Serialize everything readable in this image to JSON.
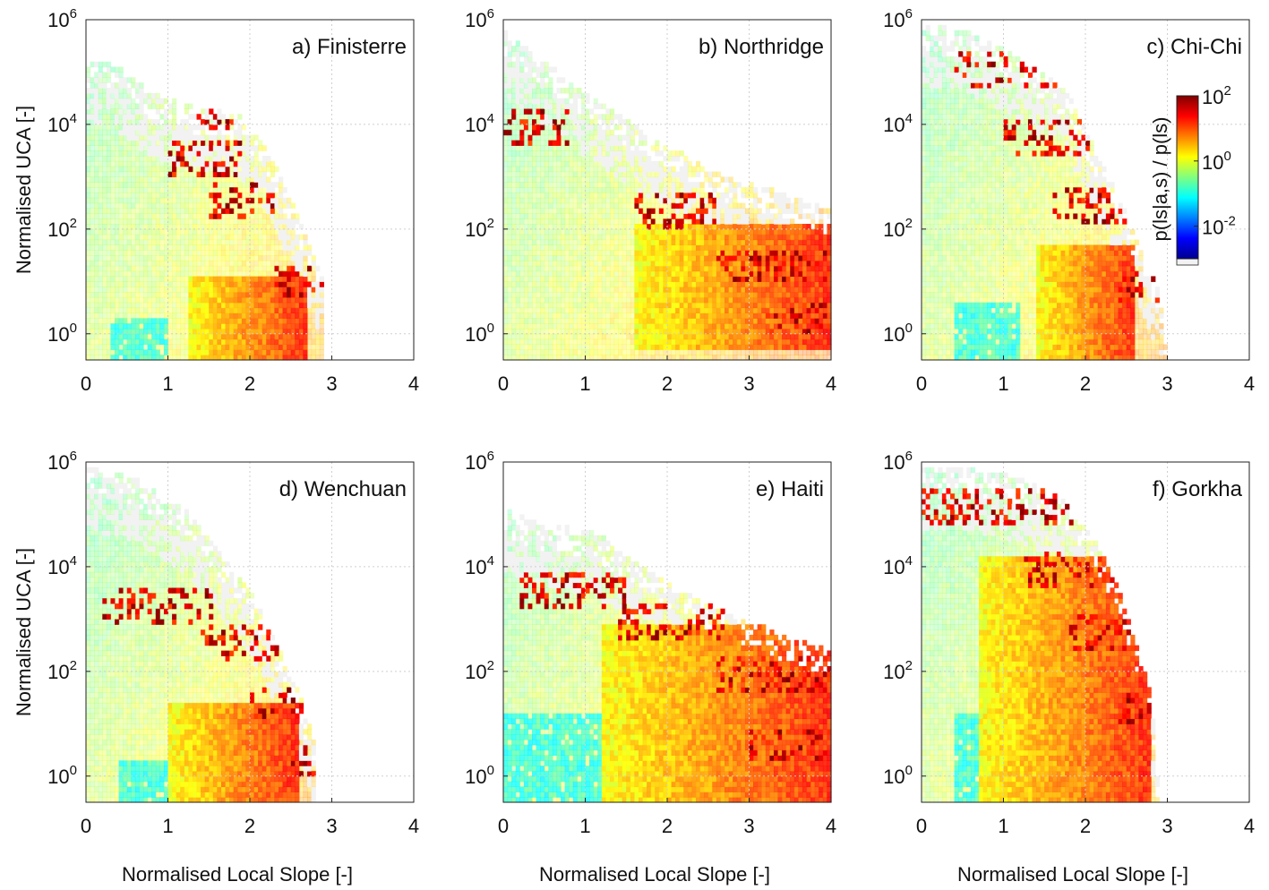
{
  "chart_data": [
    {
      "type": "heatmap",
      "title": "a) Finisterre",
      "xlabel": "",
      "ylabel": "Normalised UCA [-]",
      "xlim": [
        0,
        4
      ],
      "ylim_log10": [
        -0.5,
        6
      ],
      "yscale": "log",
      "xticks": [
        "0",
        "1",
        "2",
        "3",
        "4"
      ],
      "yticks": [
        {
          "base": "10",
          "exp": "0"
        },
        {
          "base": "10",
          "exp": "2"
        },
        {
          "base": "10",
          "exp": "4"
        },
        {
          "base": "10",
          "exp": "6"
        }
      ],
      "grid": true,
      "background_extent": [
        [
          0,
          5.2
        ],
        [
          0.3,
          5.2
        ],
        [
          0.8,
          4.6
        ],
        [
          1.4,
          4.3
        ],
        [
          1.9,
          4.2
        ],
        [
          2.3,
          3.3
        ],
        [
          2.6,
          2.2
        ],
        [
          2.9,
          1.0
        ],
        [
          2.9,
          -0.5
        ]
      ],
      "green_patch": [
        0.3,
        1.0,
        -0.5,
        0.3
      ],
      "hot_core": [
        1.25,
        2.7,
        -0.5,
        1.1
      ],
      "red_rows": [
        [
          1.0,
          1.9,
          3.4
        ],
        [
          1.3,
          2.0,
          4.3
        ],
        [
          1.5,
          2.3,
          2.6
        ],
        [
          2.3,
          2.9,
          1.0
        ]
      ],
      "hot_max_x": 2.9
    },
    {
      "type": "heatmap",
      "title": "b) Northridge",
      "xlabel": "",
      "ylabel": "",
      "xlim": [
        0,
        4
      ],
      "ylim_log10": [
        -0.5,
        6
      ],
      "yscale": "log",
      "xticks": [
        "0",
        "1",
        "2",
        "3",
        "4"
      ],
      "yticks": [
        {
          "base": "10",
          "exp": "0"
        },
        {
          "base": "10",
          "exp": "2"
        },
        {
          "base": "10",
          "exp": "4"
        },
        {
          "base": "10",
          "exp": "6"
        }
      ],
      "grid": true,
      "background_extent": [
        [
          0,
          5.8
        ],
        [
          0.5,
          5.2
        ],
        [
          1.0,
          4.6
        ],
        [
          1.5,
          4.1
        ],
        [
          2.0,
          3.6
        ],
        [
          2.6,
          3.1
        ],
        [
          3.0,
          2.9
        ],
        [
          3.4,
          2.7
        ],
        [
          4.0,
          2.4
        ],
        [
          4.0,
          -0.5
        ]
      ],
      "green_patch": null,
      "hot_core": [
        1.6,
        4.0,
        -0.3,
        2.1
      ],
      "red_rows": [
        [
          0.0,
          0.8,
          4.0
        ],
        [
          1.6,
          2.6,
          2.4
        ],
        [
          2.6,
          4.0,
          1.3
        ],
        [
          3.2,
          4.0,
          0.3
        ]
      ],
      "hot_max_x": 4.0
    },
    {
      "type": "heatmap",
      "title": "c) Chi-Chi",
      "xlabel": "",
      "ylabel": "",
      "xlim": [
        0,
        4
      ],
      "ylim_log10": [
        -0.5,
        6
      ],
      "yscale": "log",
      "xticks": [
        "0",
        "1",
        "2",
        "3",
        "4"
      ],
      "yticks": [
        {
          "base": "10",
          "exp": "0"
        },
        {
          "base": "10",
          "exp": "2"
        },
        {
          "base": "10",
          "exp": "4"
        },
        {
          "base": "10",
          "exp": "6"
        }
      ],
      "grid": true,
      "background_extent": [
        [
          0,
          5.9
        ],
        [
          0.6,
          5.8
        ],
        [
          1.2,
          5.3
        ],
        [
          1.8,
          4.6
        ],
        [
          2.1,
          3.6
        ],
        [
          2.4,
          2.6
        ],
        [
          2.7,
          1.6
        ],
        [
          2.9,
          0.8
        ],
        [
          3.0,
          -0.5
        ]
      ],
      "green_patch": [
        0.4,
        1.2,
        -0.5,
        0.6
      ],
      "hot_core": [
        1.4,
        2.6,
        -0.5,
        1.7
      ],
      "red_rows": [
        [
          0.4,
          2.0,
          5.0
        ],
        [
          1.0,
          2.1,
          3.8
        ],
        [
          1.6,
          2.5,
          2.5
        ],
        [
          2.4,
          2.9,
          0.9
        ]
      ],
      "hot_max_x": 2.95
    },
    {
      "type": "heatmap",
      "title": "d) Wenchuan",
      "xlabel": "Normalised Local Slope [-]",
      "ylabel": "Normalised UCA [-]",
      "xlim": [
        0,
        4
      ],
      "ylim_log10": [
        -0.5,
        6
      ],
      "yscale": "log",
      "xticks": [
        "0",
        "1",
        "2",
        "3",
        "4"
      ],
      "yticks": [
        {
          "base": "10",
          "exp": "0"
        },
        {
          "base": "10",
          "exp": "2"
        },
        {
          "base": "10",
          "exp": "4"
        },
        {
          "base": "10",
          "exp": "6"
        }
      ],
      "grid": true,
      "background_extent": [
        [
          0,
          5.9
        ],
        [
          0.6,
          5.7
        ],
        [
          1.2,
          5.1
        ],
        [
          1.6,
          4.4
        ],
        [
          2.0,
          3.6
        ],
        [
          2.3,
          2.6
        ],
        [
          2.6,
          1.6
        ],
        [
          2.8,
          0.6
        ],
        [
          2.8,
          -0.5
        ]
      ],
      "green_patch": [
        0.4,
        1.2,
        -0.5,
        0.3
      ],
      "hot_core": [
        1.0,
        2.6,
        -0.5,
        1.4
      ],
      "red_rows": [
        [
          0.2,
          1.6,
          3.3
        ],
        [
          1.4,
          2.4,
          2.6
        ],
        [
          2.0,
          2.7,
          1.4
        ],
        [
          2.5,
          2.8,
          0.3
        ]
      ],
      "hot_max_x": 2.8
    },
    {
      "type": "heatmap",
      "title": "e) Haiti",
      "xlabel": "Normalised Local Slope [-]",
      "ylabel": "",
      "xlim": [
        0,
        4
      ],
      "ylim_log10": [
        -0.5,
        6
      ],
      "yscale": "log",
      "xticks": [
        "0",
        "1",
        "2",
        "3",
        "4"
      ],
      "yticks": [
        {
          "base": "10",
          "exp": "0"
        },
        {
          "base": "10",
          "exp": "2"
        },
        {
          "base": "10",
          "exp": "4"
        },
        {
          "base": "10",
          "exp": "6"
        }
      ],
      "grid": true,
      "background_extent": [
        [
          0,
          5.1
        ],
        [
          0.5,
          4.8
        ],
        [
          1.1,
          4.7
        ],
        [
          1.6,
          4.1
        ],
        [
          2.1,
          3.6
        ],
        [
          2.6,
          3.2
        ],
        [
          3.1,
          2.9
        ],
        [
          3.6,
          2.6
        ],
        [
          4.0,
          2.4
        ],
        [
          4.0,
          -0.5
        ]
      ],
      "green_patch": [
        0.0,
        1.9,
        -0.5,
        1.2
      ],
      "hot_core": [
        1.2,
        4.0,
        -0.5,
        2.9
      ],
      "red_rows": [
        [
          0.2,
          1.5,
          3.6
        ],
        [
          1.4,
          2.7,
          3.0
        ],
        [
          2.6,
          4.0,
          2.0
        ],
        [
          3.0,
          4.0,
          0.6
        ]
      ],
      "hot_max_x": 4.0
    },
    {
      "type": "heatmap",
      "title": "f) Gorkha",
      "xlabel": "Normalised Local Slope [-]",
      "ylabel": "",
      "xlim": [
        0,
        4
      ],
      "ylim_log10": [
        -0.5,
        6
      ],
      "yscale": "log",
      "xticks": [
        "0",
        "1",
        "2",
        "3",
        "4"
      ],
      "yticks": [
        {
          "base": "10",
          "exp": "0"
        },
        {
          "base": "10",
          "exp": "2"
        },
        {
          "base": "10",
          "exp": "4"
        },
        {
          "base": "10",
          "exp": "6"
        }
      ],
      "grid": true,
      "background_extent": [
        [
          0,
          5.9
        ],
        [
          0.6,
          5.9
        ],
        [
          1.2,
          5.7
        ],
        [
          1.7,
          5.3
        ],
        [
          2.1,
          4.6
        ],
        [
          2.4,
          3.6
        ],
        [
          2.6,
          2.6
        ],
        [
          2.8,
          1.6
        ],
        [
          2.9,
          -0.5
        ]
      ],
      "green_patch": [
        0.4,
        1.4,
        -0.5,
        1.2
      ],
      "hot_core": [
        0.7,
        2.8,
        -0.5,
        4.2
      ],
      "red_rows": [
        [
          0.0,
          2.0,
          5.1
        ],
        [
          1.2,
          2.5,
          4.0
        ],
        [
          1.8,
          2.8,
          2.8
        ],
        [
          2.4,
          2.8,
          1.3
        ]
      ],
      "hot_max_x": 2.85
    }
  ],
  "colorbar": {
    "label": "p(ls|a,s) / p(ls)",
    "ticks": [
      {
        "base": "10",
        "exp": "2"
      },
      {
        "base": "10",
        "exp": "0"
      },
      {
        "base": "10",
        "exp": "-2"
      }
    ],
    "scale_log10": [
      -3,
      2
    ],
    "colors": [
      "#00008f",
      "#0000ff",
      "#0080ff",
      "#00ffff",
      "#80ff80",
      "#ffff00",
      "#ff8000",
      "#ff0000",
      "#800000"
    ],
    "nodata_color": "#f2f2f2"
  }
}
